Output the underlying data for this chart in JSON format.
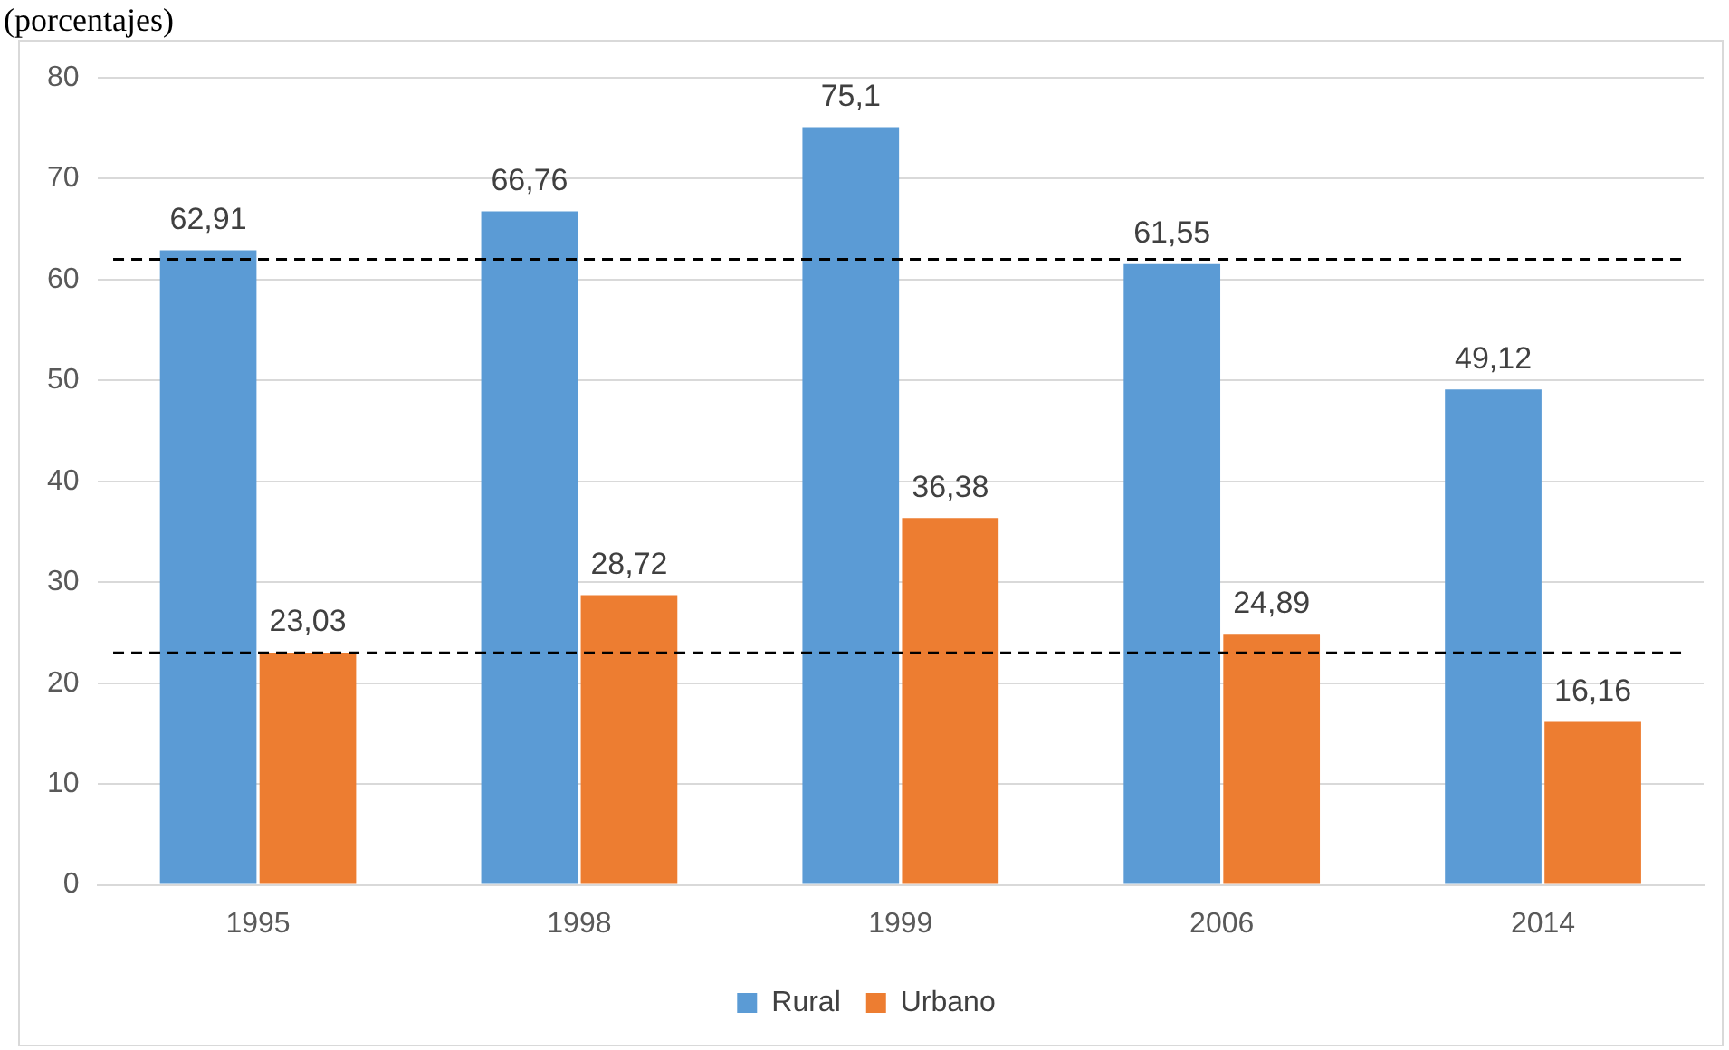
{
  "chart_data": {
    "type": "bar",
    "title": "(porcentajes)",
    "categories": [
      "1995",
      "1998",
      "1999",
      "2006",
      "2014"
    ],
    "series": [
      {
        "name": "Rural",
        "color": "#5b9bd5",
        "values": [
          62.91,
          66.76,
          75.1,
          61.55,
          49.12
        ],
        "value_labels": [
          "62,91",
          "66,76",
          "75,1",
          "61,55",
          "49,12"
        ]
      },
      {
        "name": "Urbano",
        "color": "#ed7d31",
        "values": [
          23.03,
          28.72,
          36.38,
          24.89,
          16.16
        ],
        "value_labels": [
          "23,03",
          "28,72",
          "36,38",
          "24,89",
          "16,16"
        ]
      }
    ],
    "ylim": [
      0,
      80
    ],
    "yticks": [
      0,
      10,
      20,
      30,
      40,
      50,
      60,
      70,
      80
    ],
    "grid": "y",
    "legend": "bottom",
    "ref_lines": [
      {
        "axis": "y",
        "value": 62,
        "color": "#000000",
        "line_style": "dashed"
      },
      {
        "axis": "y",
        "value": 23,
        "color": "#000000",
        "line_style": "dashed"
      }
    ]
  }
}
